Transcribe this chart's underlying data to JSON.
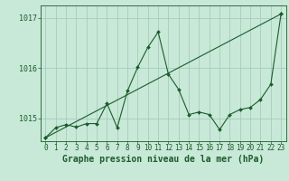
{
  "background_color": "#c8e8d8",
  "grid_color": "#a0c8b8",
  "line_color": "#1a5c2a",
  "xlabel": "Graphe pression niveau de la mer (hPa)",
  "xlabel_fontsize": 7.0,
  "tick_fontsize": 5.5,
  "ytick_fontsize": 6.0,
  "yticks": [
    1015,
    1016,
    1017
  ],
  "ylim": [
    1014.55,
    1017.25
  ],
  "xlim": [
    -0.5,
    23.5
  ],
  "xticks": [
    0,
    1,
    2,
    3,
    4,
    5,
    6,
    7,
    8,
    9,
    10,
    11,
    12,
    13,
    14,
    15,
    16,
    17,
    18,
    19,
    20,
    21,
    22,
    23
  ],
  "series1_x": [
    0,
    1,
    2,
    3,
    4,
    5,
    6,
    7,
    8,
    9,
    10,
    11,
    12,
    13,
    14,
    15,
    16,
    17,
    18,
    19,
    20,
    21,
    22,
    23
  ],
  "series1_y": [
    1014.62,
    1014.82,
    1014.88,
    1014.83,
    1014.9,
    1014.9,
    1015.3,
    1014.82,
    1015.55,
    1016.02,
    1016.42,
    1016.72,
    1015.88,
    1015.58,
    1015.08,
    1015.13,
    1015.08,
    1014.78,
    1015.08,
    1015.18,
    1015.22,
    1015.38,
    1015.68,
    1017.08
  ],
  "series2_x": [
    0,
    23
  ],
  "series2_y": [
    1014.62,
    1017.08
  ]
}
